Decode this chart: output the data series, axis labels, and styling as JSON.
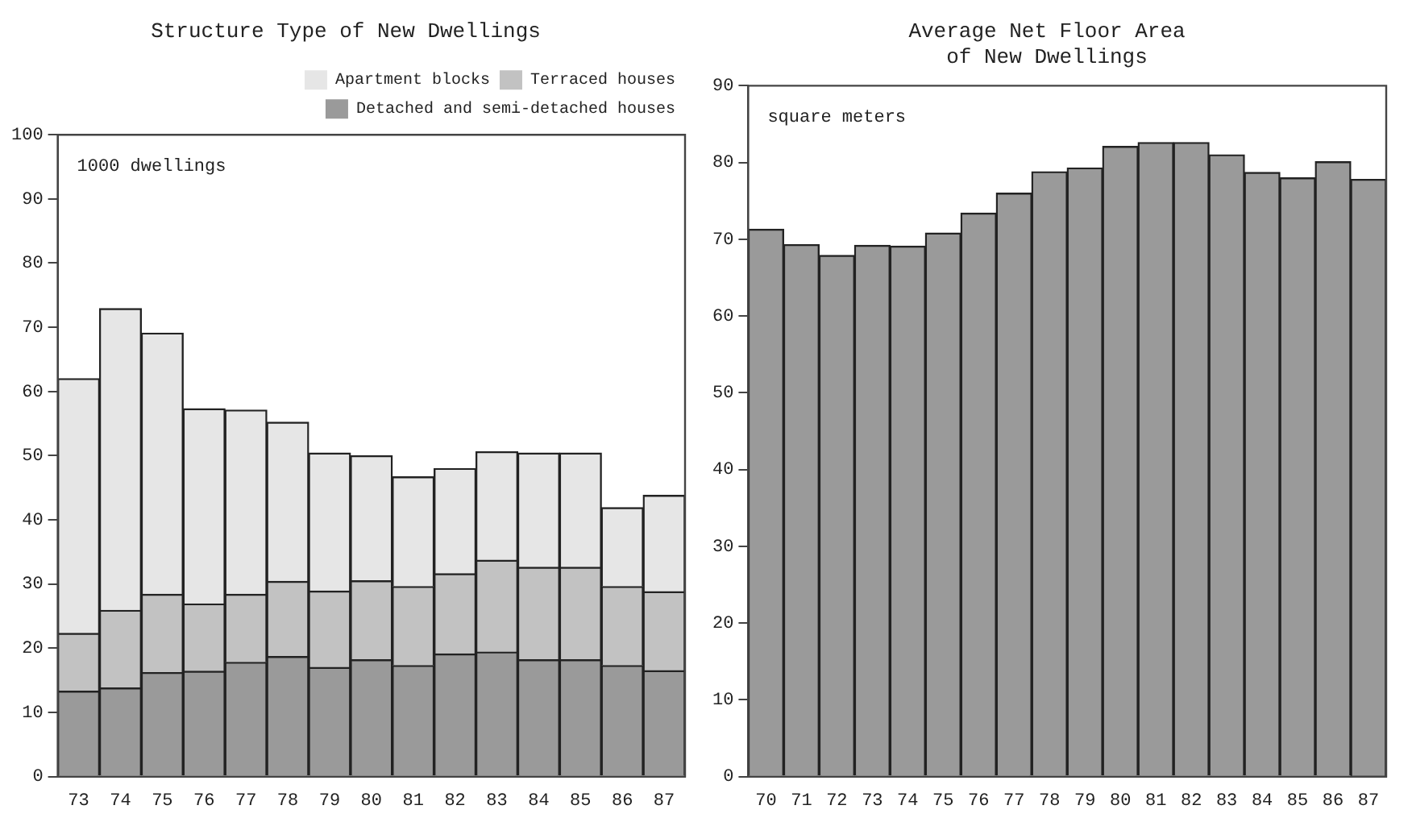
{
  "chart_data": [
    {
      "type": "bar",
      "title": "Structure Type of New Dwellings",
      "ylabel": "1000 dwellings",
      "stacked": true,
      "categories": [
        "73",
        "74",
        "75",
        "76",
        "77",
        "78",
        "79",
        "80",
        "81",
        "82",
        "83",
        "84",
        "85",
        "86",
        "87"
      ],
      "series": [
        {
          "name": "Detached and semi-detached houses",
          "color": "#9a9a9a",
          "values": [
            13.3,
            13.8,
            16.2,
            16.4,
            17.8,
            18.7,
            17.0,
            18.2,
            17.3,
            19.1,
            19.4,
            18.2,
            18.2,
            17.3,
            16.5
          ]
        },
        {
          "name": "Terraced houses",
          "color": "#c2c2c2",
          "values": [
            9.0,
            12.1,
            12.2,
            10.5,
            10.6,
            11.7,
            11.9,
            12.3,
            12.3,
            12.5,
            14.3,
            14.4,
            14.4,
            12.3,
            12.3
          ]
        },
        {
          "name": "Apartment blocks",
          "color": "#e6e6e6",
          "values": [
            39.7,
            47.0,
            40.7,
            30.4,
            28.7,
            24.8,
            21.5,
            19.5,
            17.1,
            16.4,
            16.9,
            17.8,
            17.8,
            12.3,
            15.0
          ]
        }
      ],
      "ylim": [
        0,
        100
      ],
      "yticks": [
        0,
        10,
        20,
        30,
        40,
        50,
        60,
        70,
        80,
        90,
        100
      ],
      "grid": false,
      "legend": "top right"
    },
    {
      "type": "bar",
      "title": "Average Net Floor Area\nof New Dwellings",
      "ylabel": "square meters",
      "categories": [
        "70",
        "71",
        "72",
        "73",
        "74",
        "75",
        "76",
        "77",
        "78",
        "79",
        "80",
        "81",
        "82",
        "83",
        "84",
        "85",
        "86",
        "87"
      ],
      "series": [
        {
          "color": "#9a9a9a",
          "values": [
            71.3,
            69.3,
            67.9,
            69.2,
            69.1,
            70.8,
            73.4,
            76.0,
            78.8,
            79.3,
            82.1,
            82.6,
            82.6,
            81.0,
            78.7,
            78.0,
            80.1,
            77.8
          ]
        }
      ],
      "ylim": [
        0,
        90
      ],
      "yticks": [
        0,
        10,
        20,
        30,
        40,
        50,
        60,
        70,
        80,
        90
      ],
      "grid": false
    }
  ]
}
